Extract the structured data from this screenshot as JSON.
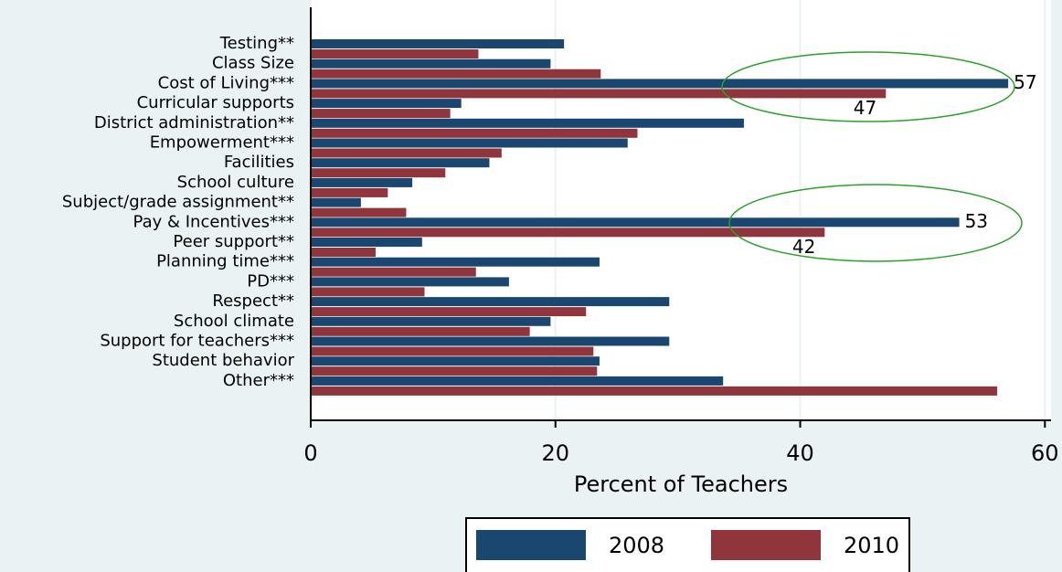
{
  "chart_data": {
    "type": "hbar",
    "x_label": "Percent of Teachers",
    "categories": [
      "Testing**",
      "Class Size",
      "Cost of Living***",
      "Curricular supports",
      "District administration**",
      "Empowerment***",
      "Facilities",
      "School culture",
      "Subject/grade assignment**",
      "Pay & Incentives***",
      "Peer support**",
      "Planning time***",
      "PD***",
      "Respect**",
      "School climate",
      "Support for teachers***",
      "Student behavior",
      "Other***"
    ],
    "series": [
      {
        "name": "2008",
        "color": "#1a476f",
        "values": [
          20.7,
          19.6,
          57,
          12.3,
          35.4,
          25.9,
          14.6,
          8.3,
          4.1,
          53,
          9.1,
          23.6,
          16.2,
          29.3,
          19.6,
          29.3,
          23.6,
          33.7
        ],
        "value_labels": [
          null,
          null,
          "57",
          null,
          null,
          null,
          null,
          null,
          null,
          "53",
          null,
          null,
          null,
          null,
          null,
          null,
          null,
          null
        ]
      },
      {
        "name": "2010",
        "color": "#90353b",
        "values": [
          13.7,
          23.7,
          47,
          11.4,
          26.7,
          15.6,
          11,
          6.3,
          7.8,
          42,
          5.3,
          13.5,
          9.3,
          22.5,
          17.9,
          23.1,
          23.4,
          56.1
        ],
        "value_labels": [
          null,
          null,
          "47",
          null,
          null,
          null,
          null,
          null,
          null,
          "42",
          null,
          null,
          null,
          null,
          null,
          null,
          null,
          null
        ]
      }
    ],
    "xlim": [
      0,
      60.5
    ],
    "xticks": [
      0,
      20,
      40,
      60
    ],
    "grid": true,
    "legend": "bottom"
  }
}
